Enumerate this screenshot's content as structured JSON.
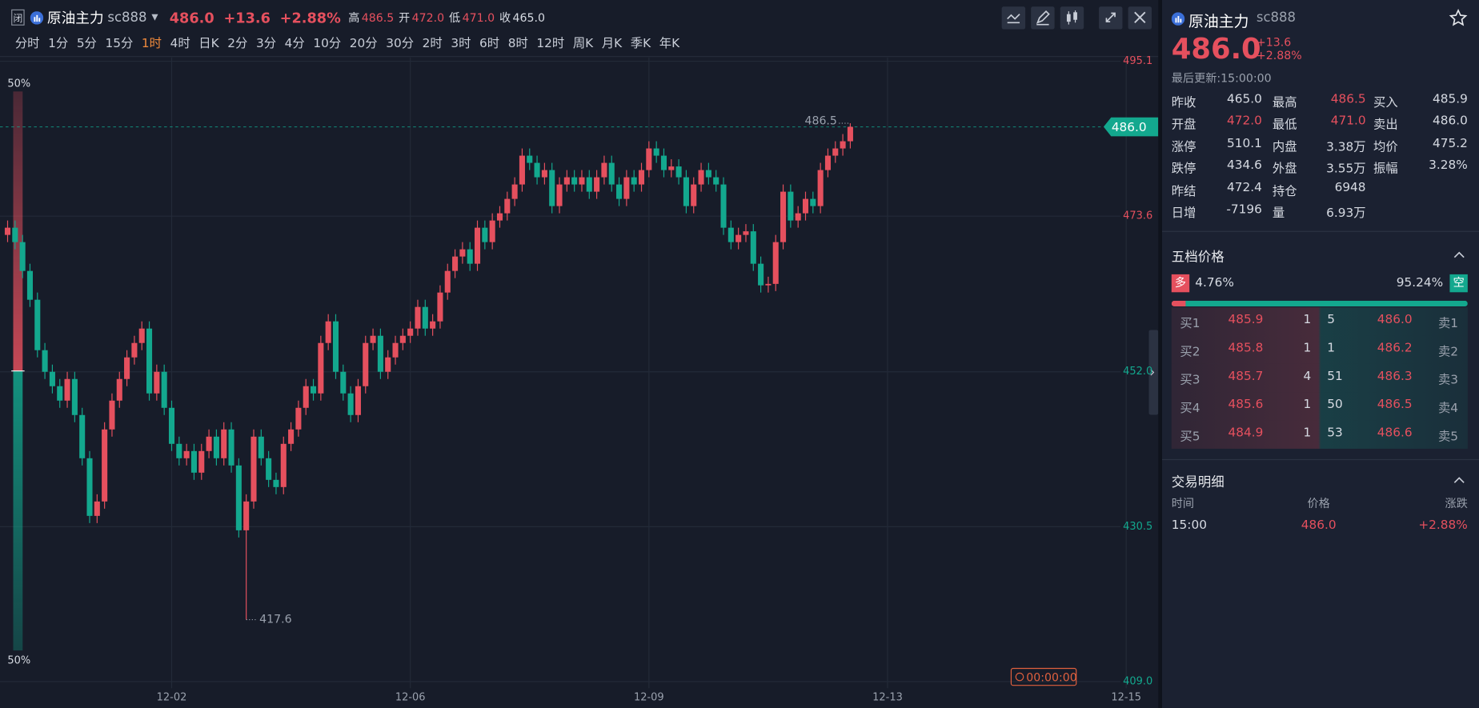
{
  "header": {
    "lock": "闭",
    "name": "原油主力",
    "code": "sc888",
    "price": "486.0",
    "change": "+13.6",
    "pct": "+2.88%",
    "high_label": "高",
    "high": "486.5",
    "open_label": "开",
    "open": "472.0",
    "low_label": "低",
    "low": "471.0",
    "close_label": "收",
    "close": "465.0"
  },
  "periods": [
    "分时",
    "1分",
    "5分",
    "15分",
    "1时",
    "4时",
    "日K",
    "2分",
    "3分",
    "4分",
    "10分",
    "20分",
    "30分",
    "2时",
    "3时",
    "6时",
    "8时",
    "12时",
    "周K",
    "月K",
    "季K",
    "年K"
  ],
  "selected_period": 4,
  "chart_data": {
    "type": "candlestick",
    "up_color": "#e5505e",
    "down_color": "#13a88e",
    "categories": [
      null,
      null,
      null,
      null,
      null,
      null,
      null,
      null,
      null,
      null,
      null,
      null,
      null,
      null,
      null,
      null,
      null,
      null,
      null,
      null,
      null,
      null,
      null,
      "12-02",
      null,
      null,
      null,
      null,
      null,
      null,
      null,
      null,
      null,
      null,
      null,
      null,
      null,
      null,
      null,
      null,
      null,
      null,
      null,
      null,
      null,
      null,
      null,
      null,
      null,
      null,
      null,
      null,
      null,
      null,
      null,
      "12-06",
      null,
      null,
      null,
      null,
      null,
      null,
      null,
      null,
      null,
      null,
      null,
      null,
      null,
      null,
      null,
      null,
      null,
      null,
      null,
      null,
      null,
      null,
      null,
      null,
      null,
      null,
      null,
      null,
      null,
      null,
      null,
      "12-09",
      null,
      null,
      null,
      null,
      null,
      null,
      null,
      null,
      null,
      null,
      null,
      null,
      null,
      null,
      null,
      null,
      null,
      null,
      null,
      null,
      null,
      null,
      null,
      null,
      null,
      null,
      null,
      null,
      null,
      null,
      null,
      "12-13",
      null,
      null,
      null,
      null,
      null,
      null,
      null,
      null,
      null,
      null,
      null,
      null,
      null,
      null,
      null,
      null,
      null,
      null,
      null,
      null,
      null,
      null,
      null,
      null,
      null,
      null,
      null,
      null,
      null,
      null,
      null,
      "12-15"
    ],
    "open": [
      null,
      471,
      472,
      470,
      466,
      462,
      455,
      452,
      450,
      448,
      451,
      446,
      440,
      432,
      434,
      444,
      448,
      451,
      454,
      456,
      458,
      449,
      452,
      447,
      442,
      440,
      441,
      438,
      441,
      443,
      440,
      444,
      439,
      430,
      434,
      443,
      440,
      437,
      436,
      442,
      444,
      447,
      450,
      449,
      456,
      459,
      452,
      449,
      446,
      450,
      456,
      457,
      452,
      454,
      456,
      457,
      458,
      461,
      458,
      459,
      463,
      466,
      468,
      469,
      467,
      472,
      470,
      473,
      474,
      476,
      478,
      482,
      481,
      479,
      480,
      475,
      478,
      479,
      478,
      479,
      477,
      479,
      481,
      478,
      476,
      479,
      478,
      480,
      483,
      482,
      480,
      480.5,
      479,
      475,
      478,
      480,
      479,
      478,
      472,
      470,
      471,
      471.5,
      467,
      464,
      464.2,
      470,
      477,
      473,
      474,
      476,
      475,
      480,
      482,
      483,
      484,
      null,
      null,
      null,
      null,
      null,
      null,
      null,
      null,
      null,
      null,
      null,
      null,
      null,
      null,
      null,
      null,
      null,
      null,
      null,
      null,
      null,
      null,
      null,
      null,
      null,
      null,
      null,
      null,
      null,
      null,
      null,
      null,
      null,
      null,
      null,
      null,
      null
    ],
    "high": [
      null,
      473,
      473,
      471,
      467,
      463,
      456,
      453,
      451,
      452,
      452,
      447,
      441,
      435,
      445,
      449,
      452,
      455,
      457,
      459,
      459,
      453,
      453,
      448,
      443,
      442,
      442,
      442,
      444,
      444,
      445,
      445,
      440,
      435,
      444,
      444,
      441,
      438,
      443,
      445,
      448,
      451,
      451,
      457,
      460,
      460,
      453,
      450,
      451,
      457,
      458,
      458,
      455,
      457,
      458,
      459,
      462,
      462,
      460,
      464,
      467,
      469,
      470,
      470,
      473,
      473,
      474,
      475,
      477,
      479,
      483,
      483,
      482,
      481,
      481,
      479,
      480,
      480,
      480,
      480,
      480,
      482,
      482,
      479,
      480,
      480,
      481,
      484,
      484,
      483,
      481.5,
      481.5,
      480,
      479,
      481,
      481,
      480,
      479,
      473,
      472,
      472.5,
      472.5,
      468,
      465.2,
      471,
      478,
      478,
      475,
      477,
      477,
      481,
      483,
      484,
      485,
      486.5,
      null,
      null,
      null,
      null,
      null,
      null,
      null,
      null,
      null,
      null,
      null,
      null,
      null,
      null,
      null,
      null,
      null,
      null,
      null,
      null,
      null,
      null,
      null,
      null,
      null,
      null,
      null,
      null,
      null,
      null,
      null,
      null,
      null,
      null,
      null,
      null,
      null
    ],
    "low": [
      null,
      470,
      469,
      465,
      461,
      454,
      451,
      449,
      447,
      447,
      445,
      439,
      431,
      431,
      433,
      443,
      447,
      450,
      453,
      455,
      448,
      448,
      446,
      441,
      439,
      439,
      437,
      437,
      440,
      439,
      439,
      438,
      429,
      417.6,
      433,
      439,
      436,
      435,
      435,
      441,
      443,
      446,
      448,
      448,
      455,
      451,
      448,
      445,
      445,
      449,
      455,
      451,
      451,
      453,
      455,
      456,
      457,
      457,
      457,
      458,
      462,
      465,
      467,
      466,
      466,
      469,
      469,
      472,
      473,
      475,
      477,
      480,
      478,
      478,
      474,
      474,
      477,
      477,
      477,
      476,
      476,
      478,
      477,
      475,
      475,
      477,
      477,
      479,
      481,
      479,
      479,
      478,
      474,
      474,
      477,
      478,
      477,
      471,
      469,
      469,
      470,
      466,
      463,
      463,
      463.2,
      469,
      472,
      472,
      473,
      474,
      474,
      479,
      481,
      482,
      483,
      null,
      null,
      null,
      null,
      null,
      null,
      null,
      null,
      null,
      null,
      null,
      null,
      null,
      null,
      null,
      null,
      null,
      null,
      null,
      null,
      null,
      null,
      null,
      null,
      null,
      null,
      null,
      null,
      null,
      null,
      null,
      null,
      null,
      null,
      null,
      null,
      null
    ],
    "close": [
      null,
      472,
      470,
      466,
      462,
      455,
      452,
      450,
      448,
      451,
      446,
      440,
      432,
      434,
      444,
      448,
      451,
      454,
      456,
      458,
      449,
      452,
      447,
      442,
      440,
      441,
      438,
      441,
      443,
      440,
      444,
      439,
      430,
      434,
      443,
      440,
      437,
      436,
      442,
      444,
      447,
      450,
      449,
      456,
      459,
      452,
      449,
      446,
      450,
      456,
      457,
      452,
      454,
      456,
      457,
      458,
      461,
      458,
      459,
      463,
      466,
      468,
      469,
      467,
      472,
      470,
      473,
      474,
      476,
      478,
      482,
      481,
      479,
      480,
      475,
      478,
      479,
      478,
      479,
      477,
      479,
      481,
      478,
      476,
      479,
      478,
      480,
      483,
      482,
      480,
      480.5,
      479,
      475,
      478,
      480,
      479,
      478,
      472,
      470,
      471,
      471.5,
      467,
      464,
      464.2,
      470,
      477,
      473,
      474,
      476,
      475,
      480,
      482,
      483,
      484,
      486,
      null,
      null,
      null,
      null,
      null,
      null,
      null,
      null,
      null,
      null,
      null,
      null,
      null,
      null,
      null,
      null,
      null,
      null,
      null,
      null,
      null,
      null,
      null,
      null,
      null,
      null,
      null,
      null,
      null,
      null,
      null,
      null,
      null,
      null,
      null,
      null,
      null
    ],
    "ylim": [
      409.0,
      495.1
    ],
    "yticks": [
      {
        "value": 409.0,
        "label": "409.0"
      },
      430.5,
      {
        "value": 452.0,
        "label": "452.0"
      },
      473.6,
      495.1
    ],
    "prev_close": 465.0,
    "grid": true,
    "last_price": {
      "value": 486.0,
      "label": "486.0"
    },
    "high_mark": {
      "value": 486.5,
      "label": "486.5"
    },
    "low_mark": {
      "value": 417.6,
      "label": "417.6"
    },
    "gauge": {
      "top": {
        "value": 50,
        "label": "50%"
      },
      "bottom": {
        "value": 50,
        "label": "50%"
      }
    },
    "countdown": "00:00:00"
  },
  "quote": {
    "name": "原油主力",
    "code": "sc888",
    "price": "486.0",
    "change": "+13.6",
    "pct": "+2.88%",
    "updated": "最后更新:15:00:00"
  },
  "stats": [
    [
      [
        "昨收",
        "465.0"
      ],
      [
        "最高",
        "486.5"
      ],
      [
        "买入",
        "485.9"
      ]
    ],
    [
      [
        "开盘",
        "472.0"
      ],
      [
        "最低",
        "471.0"
      ],
      [
        "卖出",
        "486.0"
      ]
    ],
    [
      [
        "涨停",
        "510.1"
      ],
      [
        "内盘",
        "3.38万"
      ],
      [
        "均价",
        "475.2"
      ]
    ],
    [
      [
        "跌停",
        "434.6"
      ],
      [
        "外盘",
        "3.55万"
      ],
      [
        "振幅",
        "3.28%"
      ]
    ],
    [
      [
        "昨结",
        "472.4"
      ],
      [
        "持仓",
        "6948"
      ]
    ],
    [
      [
        "日增",
        "-7196"
      ],
      [
        "量",
        "6.93万"
      ]
    ]
  ],
  "depth": {
    "title": "五档价格",
    "long": "多",
    "long_ratio": {
      "value": 4.76,
      "label": "4.76%"
    },
    "short_ratio": {
      "value": 95.24,
      "label": "95.24%"
    },
    "short": "空",
    "bids": [
      [
        "买1",
        "485.9",
        "1"
      ],
      [
        "买2",
        "485.8",
        "1"
      ],
      [
        "买3",
        "485.7",
        "4"
      ],
      [
        "买4",
        "485.6",
        "1"
      ],
      [
        "买5",
        "484.9",
        "1"
      ]
    ],
    "asks": [
      [
        "5",
        "486.0",
        "卖1"
      ],
      [
        "1",
        "486.2",
        "卖2"
      ],
      [
        "51",
        "486.3",
        "卖3"
      ],
      [
        "50",
        "486.5",
        "卖4"
      ],
      [
        "53",
        "486.6",
        "卖5"
      ]
    ]
  },
  "trades": {
    "title": "交易明细",
    "headers": [
      "时间",
      "价格",
      "涨跌"
    ],
    "rows": [
      [
        "15:00",
        "486.0",
        "+2.88%"
      ]
    ]
  }
}
